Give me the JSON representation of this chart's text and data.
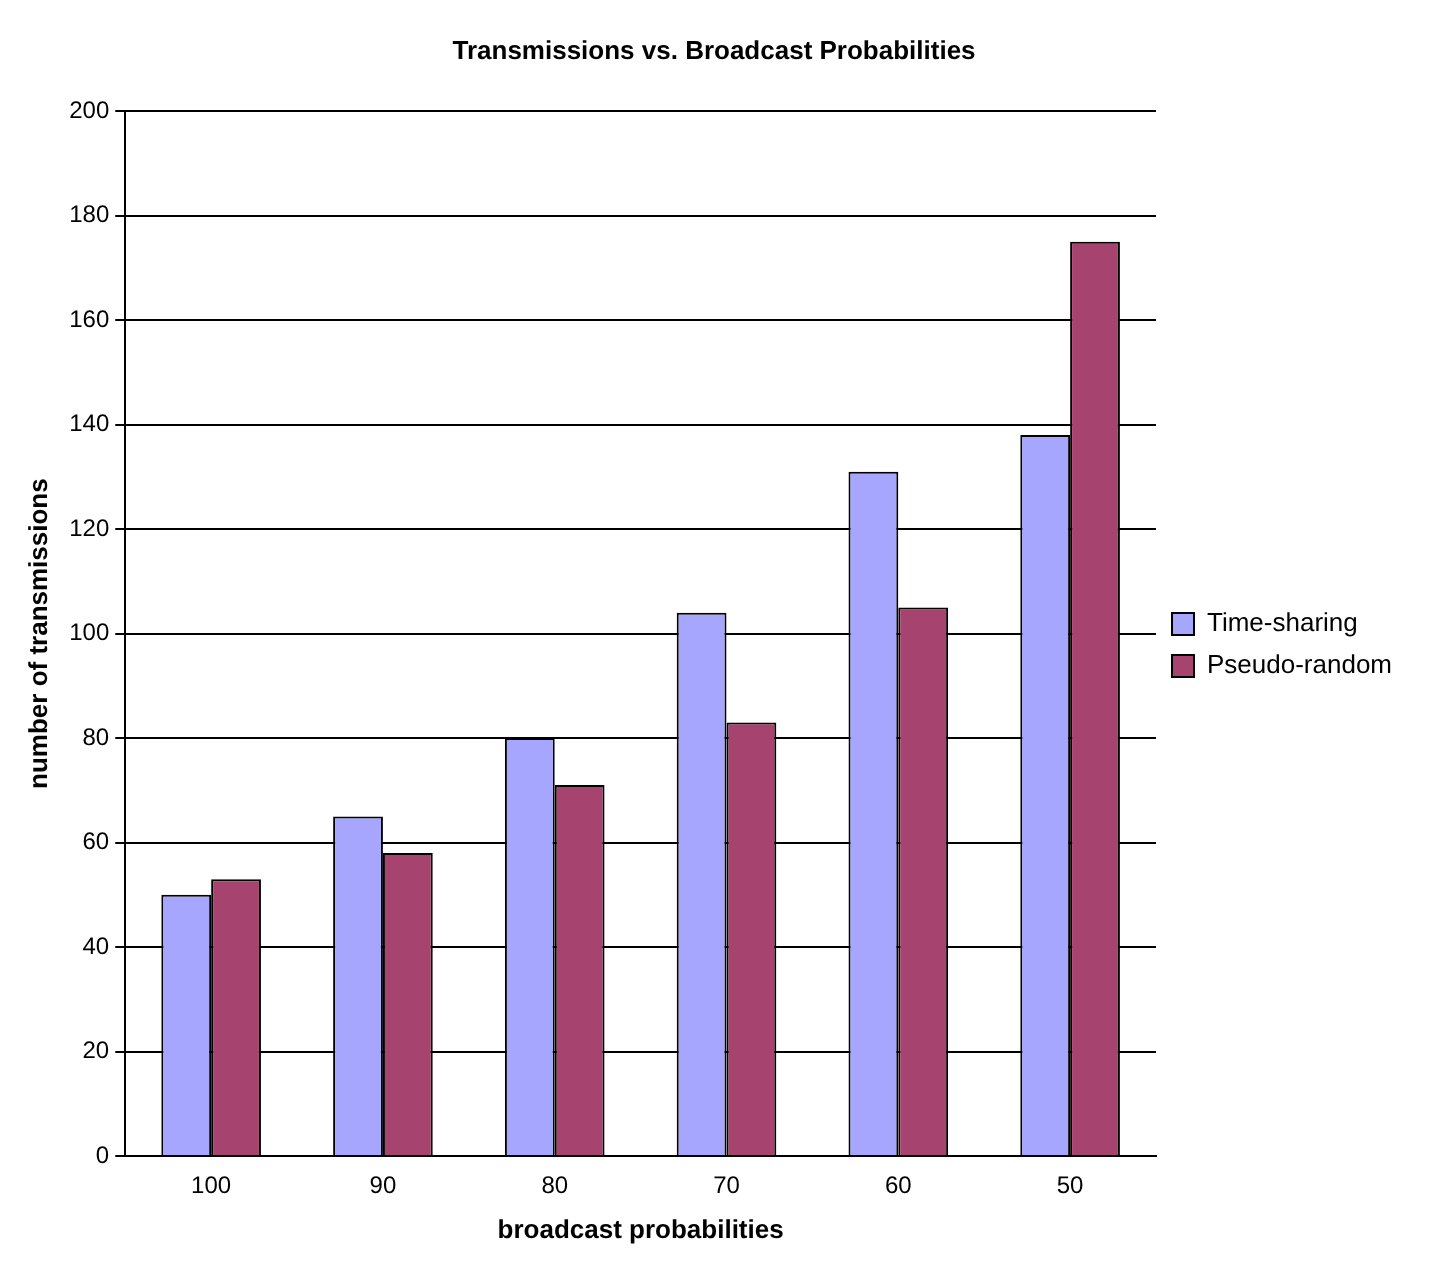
{
  "chart_data": {
    "type": "bar",
    "title": "Transmissions vs. Broadcast Probabilities",
    "xlabel": "broadcast probabilities",
    "ylabel": "number of transmissions",
    "categories": [
      "100",
      "90",
      "80",
      "70",
      "60",
      "50"
    ],
    "series": [
      {
        "name": "Time-sharing",
        "color": "#a6a6ff",
        "values": [
          50,
          65,
          80,
          104,
          131,
          138
        ]
      },
      {
        "name": "Pseudo-random",
        "color": "#a6436f",
        "values": [
          53,
          58,
          71,
          83,
          105,
          175
        ]
      }
    ],
    "ylim": [
      0,
      200
    ],
    "yticks": [
      0,
      20,
      40,
      60,
      80,
      100,
      120,
      140,
      160,
      180,
      200
    ],
    "grid": "y",
    "legend": "right"
  }
}
